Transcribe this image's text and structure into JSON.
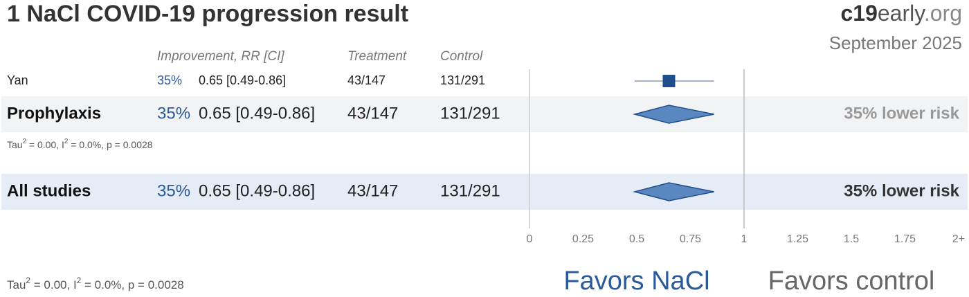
{
  "chart_data": {
    "type": "forest",
    "title": "1 NaCl COVID-19 progression result",
    "brand": [
      "c19",
      "early",
      ".org"
    ],
    "date": "September 2025",
    "columns": [
      "Improvement, RR [CI]",
      "Treatment",
      "Control"
    ],
    "rows": [
      {
        "kind": "study",
        "name": "Yan",
        "improvement": "35%",
        "rr": 0.65,
        "ci": [
          0.49,
          0.86
        ],
        "rr_label": "0.65 [0.49-0.86]",
        "treatment": "43/147",
        "control": "131/291"
      },
      {
        "kind": "subgroup",
        "name": "Prophylaxis",
        "improvement": "35%",
        "rr": 0.65,
        "ci": [
          0.49,
          0.86
        ],
        "rr_label": "0.65 [0.49-0.86]",
        "treatment": "43/147",
        "control": "131/291",
        "summary": "35% lower risk",
        "heterogeneity": [
          "Tau",
          "2",
          " = 0.00, I",
          "2",
          " = 0.0%, p = 0.0028"
        ]
      },
      {
        "kind": "total",
        "name": "All studies",
        "improvement": "35%",
        "rr": 0.65,
        "ci": [
          0.49,
          0.86
        ],
        "rr_label": "0.65 [0.49-0.86]",
        "treatment": "43/147",
        "control": "131/291",
        "summary": "35% lower risk"
      }
    ],
    "footer_heterogeneity": [
      "Tau",
      "2",
      " = 0.00, I",
      "2",
      " = 0.0%, p = 0.0028"
    ],
    "xlim": [
      0,
      2
    ],
    "xticks": [
      0,
      0.25,
      0.5,
      0.75,
      1,
      1.25,
      1.5,
      1.75,
      {
        "value": 2,
        "label": "2+"
      }
    ],
    "null_line": 1,
    "favors": [
      "Favors NaCl",
      "Favors control"
    ],
    "color": "#2a5a9a"
  }
}
